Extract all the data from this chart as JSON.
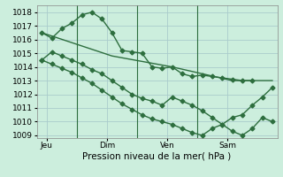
{
  "background_color": "#cceedd",
  "grid_color": "#aacccc",
  "line_color": "#2d6e3e",
  "title": "Pression niveau de la mer( hPa )",
  "ylim_min": 1008.8,
  "ylim_max": 1018.5,
  "yticks": [
    1009,
    1010,
    1011,
    1012,
    1013,
    1014,
    1015,
    1016,
    1017,
    1018
  ],
  "xtick_labels": [
    "Jeu",
    "Dim",
    "Ven",
    "Sam"
  ],
  "xtick_positions": [
    1,
    7,
    13,
    19
  ],
  "vline_positions": [
    4,
    10,
    16
  ],
  "xlim_min": 0,
  "xlim_max": 24,
  "series1_x": [
    0.5,
    1.5,
    2.5,
    3.5,
    4.5,
    5.5,
    6.5,
    7.5,
    8.5,
    9.5,
    10.5,
    11.5,
    12.5,
    13.5,
    14.5,
    15.5,
    16.5,
    17.5,
    18.5,
    19.5,
    20.5,
    21.5
  ],
  "series1_y": [
    1016.5,
    1016.1,
    1016.8,
    1017.2,
    1017.8,
    1018.0,
    1017.5,
    1016.5,
    1015.2,
    1015.1,
    1015.0,
    1014.0,
    1013.9,
    1014.0,
    1013.5,
    1013.3,
    1013.4,
    1013.3,
    1013.2,
    1013.1,
    1013.0,
    1013.0
  ],
  "series2_x": [
    0.5,
    7.5,
    13.5,
    19.5,
    23.5
  ],
  "series2_y": [
    1016.5,
    1014.8,
    1014.0,
    1013.0,
    1013.0
  ],
  "series3_x": [
    0.5,
    1.5,
    2.5,
    3.5,
    4.5,
    5.5,
    6.5,
    7.5,
    8.5,
    9.5,
    10.5,
    11.5,
    12.5,
    13.5,
    14.5,
    15.5,
    16.5,
    17.5,
    18.5,
    19.5,
    20.5,
    21.5,
    22.5,
    23.5
  ],
  "series3_y": [
    1014.5,
    1015.1,
    1014.8,
    1014.5,
    1014.2,
    1013.8,
    1013.5,
    1013.0,
    1012.5,
    1012.0,
    1011.7,
    1011.5,
    1011.2,
    1011.8,
    1011.5,
    1011.2,
    1010.8,
    1010.3,
    1009.8,
    1009.3,
    1009.0,
    1009.5,
    1010.3,
    1010.0
  ],
  "series4_x": [
    0.5,
    1.5,
    2.5,
    3.5,
    4.5,
    5.5,
    6.5,
    7.5,
    8.5,
    9.5,
    10.5,
    11.5,
    12.5,
    13.5,
    14.5,
    15.5,
    16.5,
    17.5,
    18.5,
    19.5,
    20.5,
    21.5,
    22.5,
    23.5
  ],
  "series4_y": [
    1014.5,
    1014.2,
    1013.9,
    1013.6,
    1013.2,
    1012.8,
    1012.3,
    1011.8,
    1011.3,
    1010.9,
    1010.5,
    1010.2,
    1010.0,
    1009.8,
    1009.5,
    1009.2,
    1009.0,
    1009.5,
    1009.8,
    1010.3,
    1010.5,
    1011.2,
    1011.8,
    1012.5
  ],
  "marker_style": "D",
  "marker_size": 2.5,
  "line_width": 1.0,
  "title_fontsize": 7.5,
  "tick_fontsize": 6.5
}
